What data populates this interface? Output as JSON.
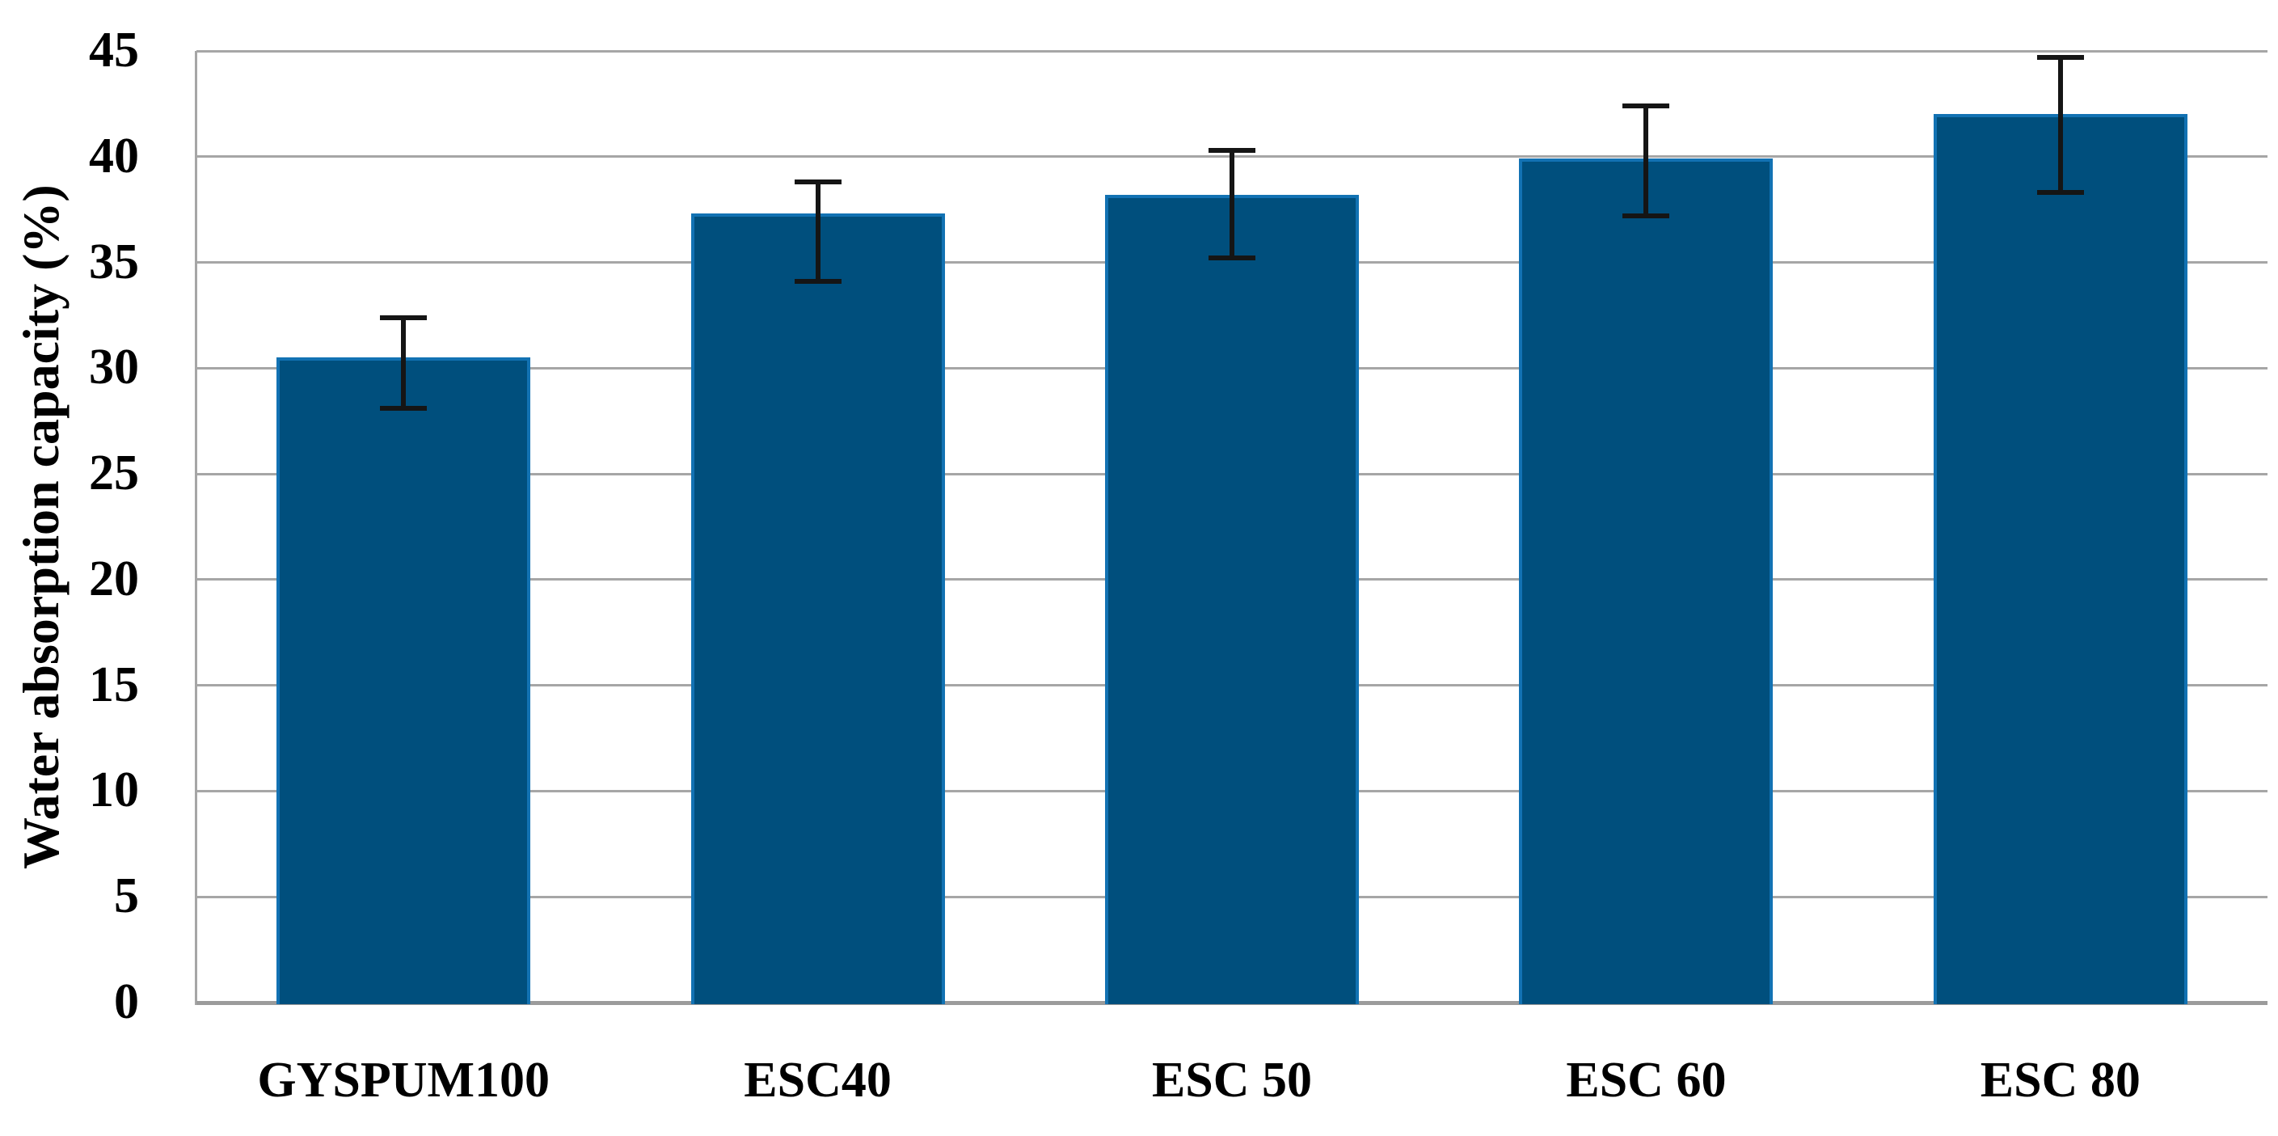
{
  "chart_data": {
    "type": "bar",
    "title": "",
    "xlabel": "",
    "ylabel": "Water absorption capacity (%)",
    "categories": [
      "GYSPUM100",
      "ESC40",
      "ESC 50",
      "ESC 60",
      "ESC 80"
    ],
    "values": [
      30.5,
      37.3,
      38.2,
      39.9,
      42.0
    ],
    "error_high": [
      32.4,
      38.8,
      40.3,
      42.4,
      44.7
    ],
    "error_low": [
      28.1,
      34.1,
      35.2,
      37.2,
      38.3
    ],
    "ylim": [
      0,
      45
    ],
    "yticks": [
      0,
      5,
      10,
      15,
      20,
      25,
      30,
      35,
      40,
      45
    ],
    "grid": true,
    "legend": false,
    "bar_color": "#004f7d",
    "bar_border_color": "#1272b3",
    "gridline_color": "#a6a6a6",
    "baseline_color": "#9b9b9b",
    "error_bar_color": "#151515",
    "text_color": "#000000"
  }
}
